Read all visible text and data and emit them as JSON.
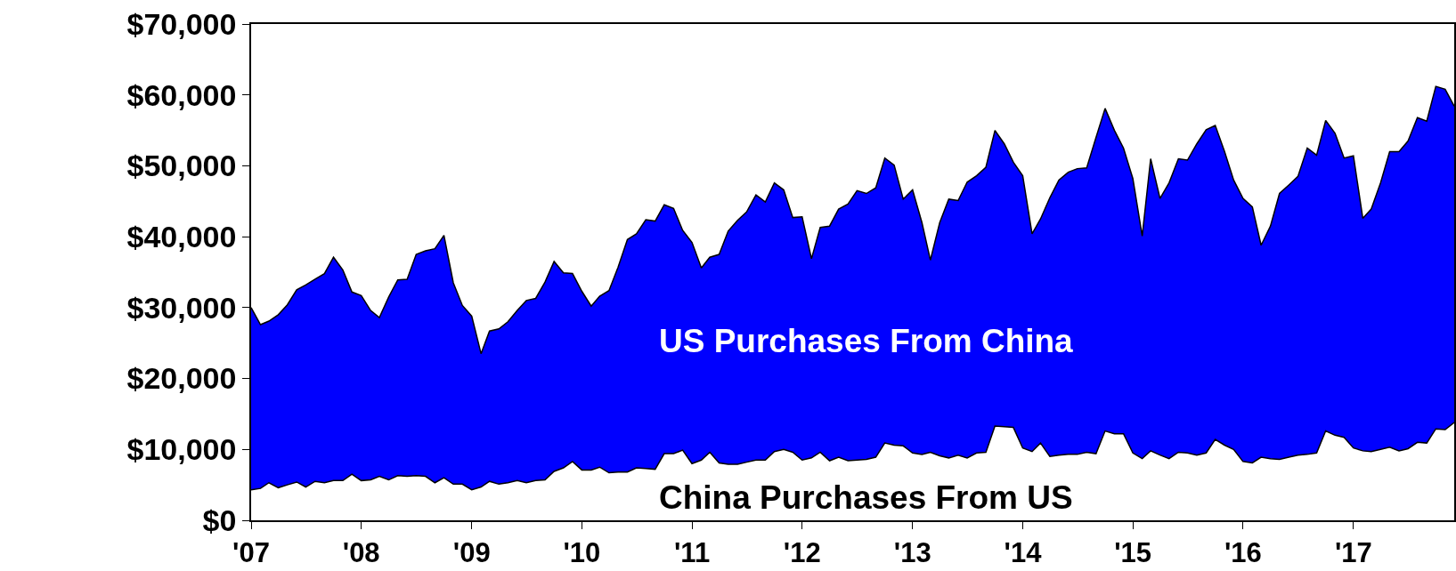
{
  "chart_data": {
    "type": "area",
    "x": [
      "2007-01",
      "2007-02",
      "2007-03",
      "2007-04",
      "2007-05",
      "2007-06",
      "2007-07",
      "2007-08",
      "2007-09",
      "2007-10",
      "2007-11",
      "2007-12",
      "2008-01",
      "2008-02",
      "2008-03",
      "2008-04",
      "2008-05",
      "2008-06",
      "2008-07",
      "2008-08",
      "2008-09",
      "2008-10",
      "2008-11",
      "2008-12",
      "2009-01",
      "2009-02",
      "2009-03",
      "2009-04",
      "2009-05",
      "2009-06",
      "2009-07",
      "2009-08",
      "2009-09",
      "2009-10",
      "2009-11",
      "2009-12",
      "2010-01",
      "2010-02",
      "2010-03",
      "2010-04",
      "2010-05",
      "2010-06",
      "2010-07",
      "2010-08",
      "2010-09",
      "2010-10",
      "2010-11",
      "2010-12",
      "2011-01",
      "2011-02",
      "2011-03",
      "2011-04",
      "2011-05",
      "2011-06",
      "2011-07",
      "2011-08",
      "2011-09",
      "2011-10",
      "2011-11",
      "2011-12",
      "2012-01",
      "2012-02",
      "2012-03",
      "2012-04",
      "2012-05",
      "2012-06",
      "2012-07",
      "2012-08",
      "2012-09",
      "2012-10",
      "2012-11",
      "2012-12",
      "2013-01",
      "2013-02",
      "2013-03",
      "2013-04",
      "2013-05",
      "2013-06",
      "2013-07",
      "2013-08",
      "2013-09",
      "2013-10",
      "2013-11",
      "2013-12",
      "2014-01",
      "2014-02",
      "2014-03",
      "2014-04",
      "2014-05",
      "2014-06",
      "2014-07",
      "2014-08",
      "2014-09",
      "2014-10",
      "2014-11",
      "2014-12",
      "2015-01",
      "2015-02",
      "2015-03",
      "2015-04",
      "2015-05",
      "2015-06",
      "2015-07",
      "2015-08",
      "2015-09",
      "2015-10",
      "2015-11",
      "2015-12",
      "2016-01",
      "2016-02",
      "2016-03",
      "2016-04",
      "2016-05",
      "2016-06",
      "2016-07",
      "2016-08",
      "2016-09",
      "2016-10",
      "2016-11",
      "2016-12",
      "2017-01",
      "2017-02",
      "2017-03",
      "2017-04",
      "2017-05",
      "2017-06",
      "2017-07",
      "2017-08",
      "2017-09",
      "2017-10",
      "2017-11",
      "2017-12"
    ],
    "series": [
      {
        "name": "China Purchases From US",
        "type": "line",
        "color": "#000000",
        "values": [
          4300,
          4500,
          5300,
          4600,
          5000,
          5400,
          4700,
          5500,
          5300,
          5600,
          5600,
          6500,
          5600,
          5700,
          6200,
          5700,
          6300,
          6200,
          6300,
          6200,
          5300,
          6000,
          5100,
          5100,
          4300,
          4700,
          5500,
          5100,
          5300,
          5600,
          5300,
          5600,
          5700,
          6900,
          7400,
          8300,
          7100,
          7100,
          7500,
          6700,
          6800,
          6800,
          7400,
          7300,
          7200,
          9400,
          9400,
          9900,
          8000,
          8500,
          9600,
          8100,
          7900,
          7900,
          8200,
          8500,
          8500,
          9700,
          10000,
          9600,
          8500,
          8800,
          9600,
          8400,
          8900,
          8400,
          8500,
          8600,
          8900,
          10900,
          10600,
          10500,
          9500,
          9300,
          9600,
          9100,
          8800,
          9200,
          8800,
          9500,
          9600,
          13300,
          13200,
          13100,
          10200,
          9700,
          10900,
          9000,
          9200,
          9300,
          9300,
          9600,
          9400,
          12600,
          12200,
          12200,
          9500,
          8700,
          9800,
          9200,
          8700,
          9600,
          9500,
          9200,
          9500,
          11400,
          10600,
          10000,
          8300,
          8100,
          8900,
          8700,
          8600,
          8900,
          9200,
          9300,
          9500,
          12600,
          12000,
          11700,
          10200,
          9800,
          9700,
          10000,
          10300,
          9800,
          10100,
          11000,
          10900,
          12900,
          12800,
          13800
        ]
      },
      {
        "name": "US Purchases From China",
        "color": "#0000ff",
        "values": [
          30000,
          27600,
          28100,
          29000,
          30400,
          32500,
          33200,
          34000,
          34800,
          37100,
          35300,
          32200,
          31700,
          29600,
          28600,
          31500,
          33900,
          34000,
          37500,
          38000,
          38300,
          40200,
          33500,
          30300,
          28800,
          23500,
          26700,
          27000,
          28000,
          29600,
          31000,
          31300,
          33600,
          36500,
          34900,
          34800,
          32300,
          30200,
          31600,
          32400,
          35700,
          39600,
          40400,
          42400,
          42200,
          44500,
          44000,
          40900,
          39200,
          35600,
          37100,
          37500,
          40800,
          42300,
          43500,
          45900,
          44900,
          47600,
          46600,
          42700,
          42800,
          36900,
          41300,
          41500,
          43900,
          44600,
          46500,
          46100,
          46900,
          51100,
          50100,
          45300,
          46600,
          42000,
          36700,
          42000,
          45300,
          45100,
          47700,
          48600,
          49800,
          55000,
          53100,
          50500,
          48600,
          40400,
          42500,
          45500,
          48000,
          49100,
          49600,
          49700,
          54000,
          58100,
          55000,
          52500,
          48200,
          40100,
          51000,
          45400,
          47600,
          51000,
          50800,
          53100,
          55100,
          55700,
          52000,
          48000,
          45400,
          44200,
          38800,
          41500,
          46100,
          47300,
          48500,
          52500,
          51500,
          56400,
          54600,
          51100,
          51400,
          42600,
          43900,
          47600,
          52000,
          52000,
          53500,
          56800,
          56300,
          61200,
          60800,
          58400
        ]
      }
    ],
    "xlim": [
      "2007-01-01",
      "2017-12-01"
    ],
    "xticks": [
      {
        "value": "2007-01-01",
        "label": "'07"
      },
      {
        "value": "2008-01-01",
        "label": "'08"
      },
      {
        "value": "2009-01-01",
        "label": "'09"
      },
      {
        "value": "2010-01-01",
        "label": "'10"
      },
      {
        "value": "2011-01-01",
        "label": "'11"
      },
      {
        "value": "2012-01-01",
        "label": "'12"
      },
      {
        "value": "2013-01-01",
        "label": "'13"
      },
      {
        "value": "2014-01-01",
        "label": "'14"
      },
      {
        "value": "2015-01-01",
        "label": "'15"
      },
      {
        "value": "2016-01-01",
        "label": "'16"
      },
      {
        "value": "2017-01-01",
        "label": "'17"
      }
    ],
    "ylim": [
      0,
      70000
    ],
    "yticks": [
      {
        "value": 0,
        "label": "$0"
      },
      {
        "value": 10000,
        "label": "$10,000"
      },
      {
        "value": 20000,
        "label": "$20,000"
      },
      {
        "value": 30000,
        "label": "$30,000"
      },
      {
        "value": 40000,
        "label": "$40,000"
      },
      {
        "value": 50000,
        "label": "$50,000"
      },
      {
        "value": 60000,
        "label": "$60,000"
      },
      {
        "value": 70000,
        "label": "$70,000"
      }
    ],
    "grid": false,
    "legend": false
  }
}
